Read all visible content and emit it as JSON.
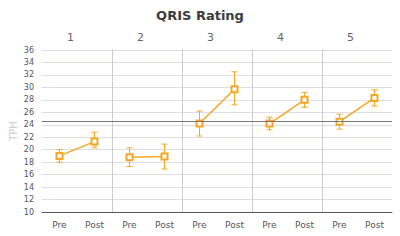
{
  "chart_data": {
    "type": "line",
    "title": "QRIS Rating",
    "ylabel": "TPH",
    "categories": [
      "Pre",
      "Post"
    ],
    "color": "#F5A623",
    "marker": "square",
    "grid": true,
    "hline": 24.5,
    "ylim": [
      10,
      36
    ],
    "yticks": [
      10,
      12,
      14,
      16,
      18,
      20,
      22,
      24,
      26,
      28,
      30,
      32,
      34,
      36
    ],
    "series": [
      {
        "name": "1",
        "values": [
          19.0,
          21.3
        ],
        "err_low": [
          1.0,
          1.0
        ],
        "err_high": [
          1.0,
          1.5
        ]
      },
      {
        "name": "2",
        "values": [
          18.8,
          18.9
        ],
        "err_low": [
          1.5,
          2.0
        ],
        "err_high": [
          1.5,
          2.0
        ]
      },
      {
        "name": "3",
        "values": [
          24.2,
          29.7
        ],
        "err_low": [
          2.0,
          2.5
        ],
        "err_high": [
          2.0,
          2.8
        ]
      },
      {
        "name": "4",
        "values": [
          24.2,
          28.0
        ],
        "err_low": [
          1.0,
          1.2
        ],
        "err_high": [
          1.0,
          1.2
        ]
      },
      {
        "name": "5",
        "values": [
          24.5,
          28.3
        ],
        "err_low": [
          1.2,
          1.3
        ],
        "err_high": [
          1.2,
          1.3
        ]
      }
    ]
  }
}
